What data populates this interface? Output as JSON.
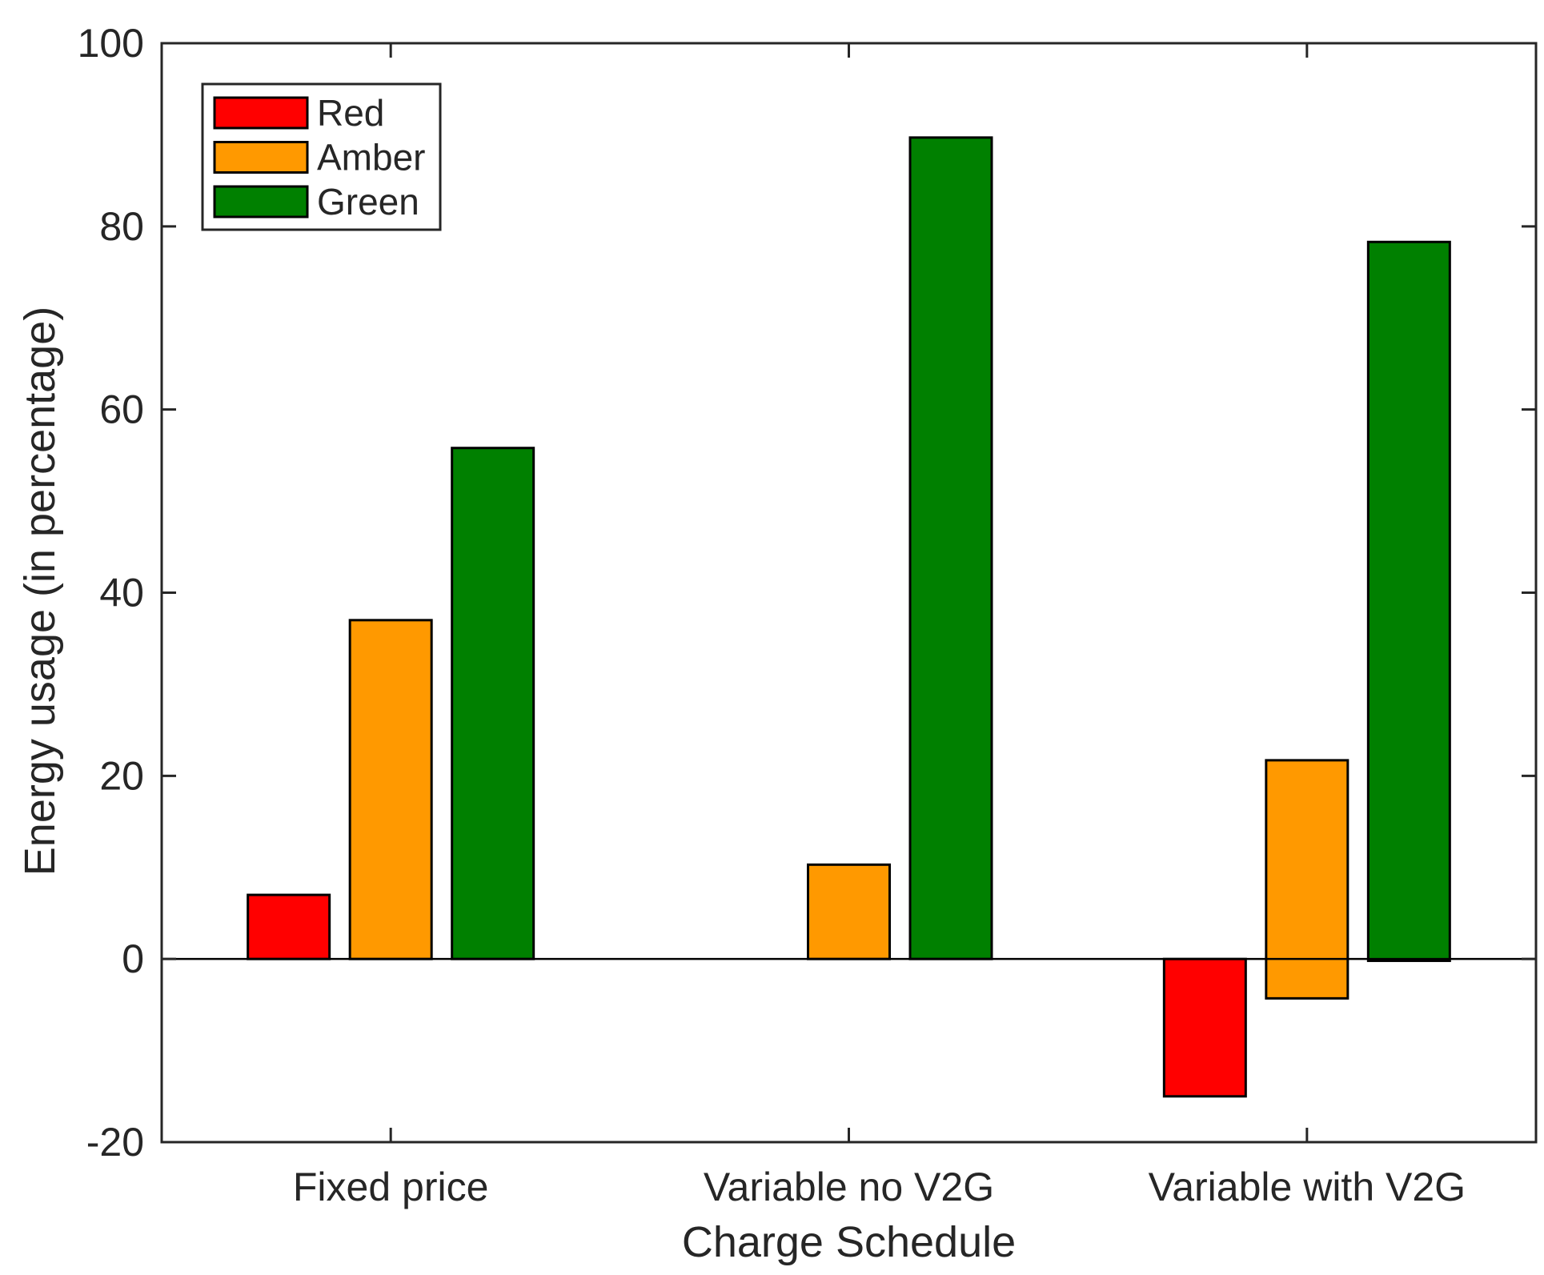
{
  "chart_data": {
    "type": "bar",
    "title": "",
    "xlabel": "Charge Schedule",
    "ylabel": "Energy usage (in percentage)",
    "ylim": [
      -20,
      100
    ],
    "yticks": [
      -20,
      0,
      20,
      40,
      60,
      80,
      100
    ],
    "grid": false,
    "legend_position": "top-left",
    "categories": [
      "Fixed price",
      "Variable no V2G",
      "Variable with V2G"
    ],
    "series": [
      {
        "name": "Red",
        "color": "#ff0000",
        "values": [
          7,
          0,
          -15
        ]
      },
      {
        "name": "Amber",
        "color": "#ff9900",
        "values": [
          37,
          10.3,
          21.7
        ],
        "base": [
          0,
          0,
          -4.3
        ]
      },
      {
        "name": "Green",
        "color": "#008000",
        "values": [
          55.8,
          89.7,
          78.3
        ],
        "base": [
          0,
          0,
          -0.2
        ]
      }
    ]
  }
}
